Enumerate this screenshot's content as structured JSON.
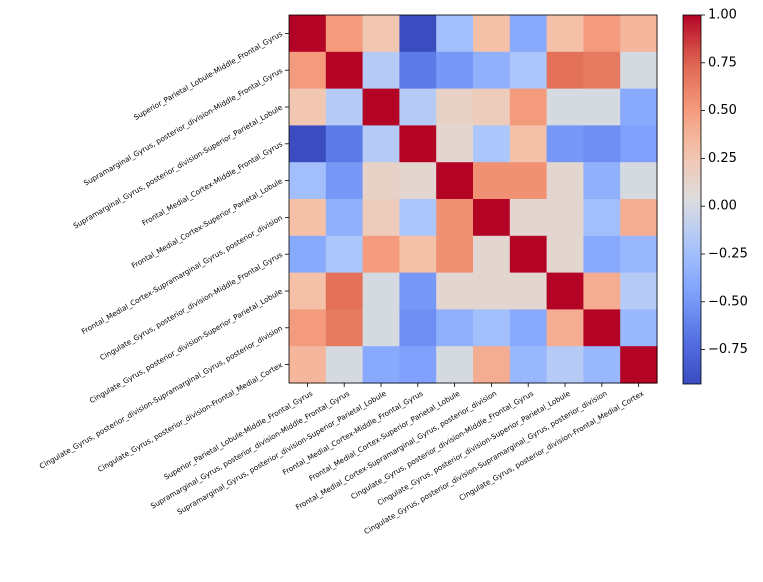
{
  "chart_data": {
    "type": "heatmap",
    "labels": [
      "Superior_Parietal_Lobule-Middle_Frontal_Gyrus",
      "Supramarginal_Gyrus, posterior_division-Middle_Frontal_Gyrus",
      "Supramarginal_Gyrus, posterior_division-Superior_Parietal_Lobule",
      "Frontal_Medial_Cortex-Middle_Frontal_Gyrus",
      "Frontal_Medial_Cortex-Superior_Parietal_Lobule",
      "Frontal_Medial_Cortex-Supramarginal_Gyrus, posterior_division",
      "Cingulate_Gyrus, posterior_division-Middle_Frontal_Gyrus",
      "Cingulate_Gyrus, posterior_division-Superior_Parietal_Lobule",
      "Cingulate_Gyrus, posterior_division-Supramarginal_Gyrus, posterior_division",
      "Cingulate_Gyrus, posterior_division-Frontal_Medial_Cortex"
    ],
    "matrix": [
      [
        1.0,
        0.5,
        0.25,
        -0.93,
        -0.25,
        0.3,
        -0.4,
        0.3,
        0.5,
        0.35
      ],
      [
        0.5,
        1.0,
        -0.15,
        -0.65,
        -0.5,
        -0.35,
        -0.2,
        0.7,
        0.65,
        0.0
      ],
      [
        0.25,
        -0.15,
        1.0,
        -0.15,
        0.15,
        0.2,
        0.5,
        0.0,
        0.0,
        -0.4
      ],
      [
        -0.93,
        -0.65,
        -0.15,
        1.0,
        0.1,
        -0.2,
        0.3,
        -0.5,
        -0.55,
        -0.45
      ],
      [
        -0.25,
        -0.5,
        0.15,
        0.1,
        1.0,
        0.55,
        0.55,
        0.1,
        -0.35,
        0.0
      ],
      [
        0.3,
        -0.35,
        0.2,
        -0.2,
        0.55,
        1.0,
        0.1,
        0.1,
        -0.25,
        0.4
      ],
      [
        -0.4,
        -0.2,
        0.5,
        0.3,
        0.55,
        0.1,
        1.0,
        0.1,
        -0.4,
        -0.3
      ],
      [
        0.3,
        0.7,
        0.0,
        -0.5,
        0.1,
        0.1,
        0.1,
        1.0,
        0.4,
        -0.15
      ],
      [
        0.5,
        0.65,
        0.0,
        -0.55,
        -0.35,
        -0.25,
        -0.4,
        0.4,
        1.0,
        -0.3
      ],
      [
        0.35,
        0.0,
        -0.4,
        -0.45,
        0.0,
        0.4,
        -0.3,
        -0.15,
        -0.3,
        1.0
      ]
    ],
    "vmin": -0.93,
    "vmax": 1.0,
    "colormap": "coolwarm",
    "colorbar_ticks": [
      "1.00",
      "0.75",
      "0.50",
      "0.25",
      "0.00",
      "−0.25",
      "−0.50",
      "−0.75"
    ],
    "colorbar_tick_values": [
      1.0,
      0.75,
      0.5,
      0.25,
      0.0,
      -0.25,
      -0.5,
      -0.75
    ],
    "title": "",
    "xlabel": "",
    "ylabel": "",
    "grid": false
  }
}
